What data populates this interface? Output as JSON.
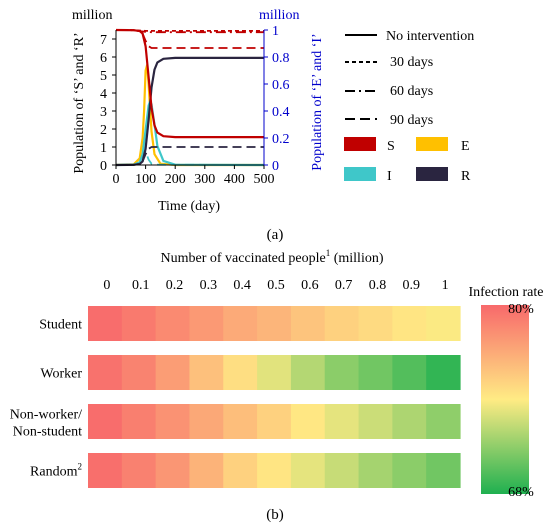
{
  "panel_a": {
    "caption": "(a)",
    "left_unit": "million",
    "right_unit": "million",
    "ylabel_left": "Population of ‘S’ and ‘R’",
    "ylabel_right": "Population of ‘E’ and ‘I’",
    "xlabel": "Time (day)",
    "legend_lines": [
      "No intervention",
      "30 days",
      "60 days",
      "90 days"
    ],
    "legend_compartments": [
      "S",
      "E",
      "I",
      "R"
    ]
  },
  "panel_b": {
    "caption": "(b)",
    "title": "Number of vaccinated people",
    "title_sup": "1",
    "title_unit": "(million)",
    "scale_label": "Infection rate",
    "scale_max": "80%",
    "scale_min": "68%"
  },
  "colors": {
    "S": "#c00000",
    "E": "#ffc000",
    "I": "#3fc7c9",
    "R": "#2a2540",
    "right_axis": "#0000cc",
    "scale_high": "#f8696b",
    "scale_mid": "#ffeb84",
    "scale_low": "#1fb050"
  },
  "chart_data": [
    {
      "type": "line",
      "x_label": "Time (day)",
      "y_left_label": "Population of ‘S’ and ‘R’",
      "y_right_label": "Population of ‘E’ and ‘I’",
      "xlim": [
        0,
        500
      ],
      "ylim_left": [
        0,
        7.5
      ],
      "ylim_right": [
        0,
        1
      ],
      "x_ticks": [
        "0",
        "100",
        "200",
        "300",
        "400",
        "500"
      ],
      "y_left_ticks": [
        "0",
        "1",
        "2",
        "3",
        "4",
        "5",
        "6",
        "7"
      ],
      "y_right_ticks": [
        "0",
        "0.2",
        "0.4",
        "0.6",
        "0.8",
        "1"
      ],
      "series": [
        {
          "name": "S",
          "style": "No intervention",
          "axis": "left",
          "x": [
            0,
            60,
            80,
            90,
            100,
            110,
            120,
            130,
            140,
            160,
            200,
            300,
            400,
            500
          ],
          "values": [
            7.5,
            7.49,
            7.44,
            7.3,
            6.6,
            4.9,
            3.2,
            2.2,
            1.8,
            1.6,
            1.55,
            1.55,
            1.55,
            1.55
          ]
        },
        {
          "name": "S",
          "style": "30 days",
          "axis": "left",
          "x": [
            0,
            60,
            80,
            100,
            120,
            500
          ],
          "values": [
            7.5,
            7.49,
            7.47,
            7.45,
            7.45,
            7.45
          ]
        },
        {
          "name": "S",
          "style": "60 days",
          "axis": "left",
          "x": [
            0,
            60,
            80,
            100,
            120,
            500
          ],
          "values": [
            7.5,
            7.49,
            7.44,
            7.4,
            7.38,
            7.38
          ]
        },
        {
          "name": "S",
          "style": "90 days",
          "axis": "left",
          "x": [
            0,
            60,
            80,
            90,
            100,
            110,
            120,
            500
          ],
          "values": [
            7.5,
            7.49,
            7.44,
            7.3,
            6.9,
            6.6,
            6.5,
            6.5
          ]
        },
        {
          "name": "R",
          "style": "No intervention",
          "axis": "left",
          "x": [
            0,
            60,
            80,
            90,
            100,
            110,
            120,
            130,
            140,
            160,
            200,
            300,
            400,
            500
          ],
          "values": [
            0,
            0.01,
            0.06,
            0.2,
            0.9,
            2.5,
            4.3,
            5.3,
            5.7,
            5.9,
            5.95,
            5.95,
            5.95,
            5.95
          ]
        },
        {
          "name": "R",
          "style": "90 days",
          "axis": "left",
          "x": [
            0,
            60,
            80,
            90,
            100,
            110,
            120,
            500
          ],
          "values": [
            0,
            0.01,
            0.06,
            0.2,
            0.6,
            0.9,
            1.0,
            1.0
          ]
        },
        {
          "name": "I",
          "style": "No intervention",
          "axis": "right",
          "x": [
            0,
            60,
            80,
            90,
            100,
            110,
            115,
            120,
            130,
            140,
            160,
            200,
            500
          ],
          "values": [
            0,
            0.003,
            0.02,
            0.08,
            0.26,
            0.44,
            0.47,
            0.45,
            0.3,
            0.14,
            0.03,
            0.002,
            0
          ]
        },
        {
          "name": "I",
          "style": "90 days",
          "axis": "right",
          "x": [
            0,
            60,
            80,
            90,
            100,
            110,
            120,
            140,
            500
          ],
          "values": [
            0,
            0.003,
            0.02,
            0.08,
            0.1,
            0.04,
            0.01,
            0.002,
            0
          ]
        },
        {
          "name": "E",
          "style": "No intervention",
          "axis": "right",
          "x": [
            0,
            60,
            80,
            90,
            95,
            100,
            105,
            110,
            120,
            130,
            150,
            200,
            500
          ],
          "values": [
            0,
            0.005,
            0.05,
            0.2,
            0.4,
            0.7,
            0.74,
            0.6,
            0.25,
            0.08,
            0.01,
            0,
            0
          ]
        }
      ]
    },
    {
      "type": "heatmap",
      "x_label": "Number of vaccinated people (million)",
      "x": [
        "0",
        "0.1",
        "0.2",
        "0.3",
        "0.4",
        "0.5",
        "0.6",
        "0.7",
        "0.8",
        "0.9",
        "1"
      ],
      "rows": [
        {
          "label": "Student",
          "values": [
            79.8,
            79.2,
            78.5,
            77.8,
            77.0,
            76.5,
            75.8,
            75.2,
            74.8,
            74.3,
            73.9
          ]
        },
        {
          "label": "Worker",
          "values": [
            79.6,
            78.8,
            77.6,
            76.0,
            74.6,
            73.2,
            72.0,
            70.9,
            70.2,
            69.4,
            68.5
          ]
        },
        {
          "label": "Non-worker/\nNon-student",
          "values": [
            79.8,
            79.0,
            78.1,
            77.1,
            76.1,
            75.2,
            74.2,
            73.3,
            72.6,
            71.8,
            71.0
          ]
        },
        {
          "label": "Random",
          "label_sup": "2",
          "values": [
            79.7,
            78.9,
            77.9,
            76.6,
            75.2,
            74.3,
            73.3,
            72.5,
            71.6,
            70.9,
            70.2
          ]
        }
      ],
      "scale": {
        "min": 68,
        "max": 80
      }
    }
  ]
}
